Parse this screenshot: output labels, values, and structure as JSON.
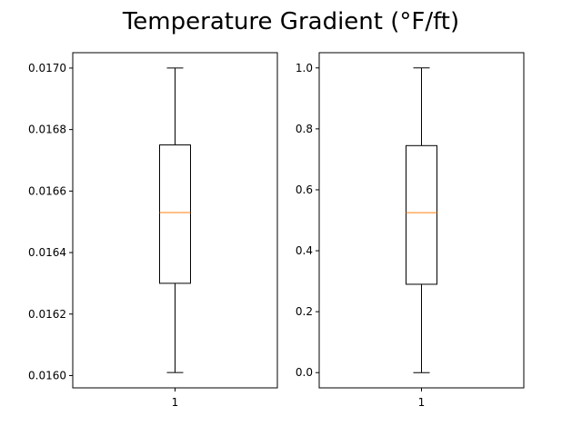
{
  "chart_data": {
    "title": "Temperature Gradient (°F/ft)",
    "box_color": "#000000",
    "median_color": "#ff7f0e",
    "panels": [
      {
        "type": "boxplot",
        "categories": [
          "1"
        ],
        "ylim": [
          0.01596,
          0.01705
        ],
        "yticks": [
          0.016,
          0.0162,
          0.0164,
          0.0166,
          0.0168,
          0.017
        ],
        "ytick_labels": [
          "0.0160",
          "0.0162",
          "0.0164",
          "0.0166",
          "0.0168",
          "0.0170"
        ],
        "box": {
          "whisker_low": 0.01601,
          "q1": 0.0163,
          "median": 0.01653,
          "q3": 0.01675,
          "whisker_high": 0.017
        }
      },
      {
        "type": "boxplot",
        "categories": [
          "1"
        ],
        "ylim": [
          -0.05,
          1.05
        ],
        "yticks": [
          0.0,
          0.2,
          0.4,
          0.6,
          0.8,
          1.0
        ],
        "ytick_labels": [
          "0.0",
          "0.2",
          "0.4",
          "0.6",
          "0.8",
          "1.0"
        ],
        "box": {
          "whisker_low": 0.0,
          "q1": 0.29,
          "median": 0.525,
          "q3": 0.745,
          "whisker_high": 1.0
        }
      }
    ]
  }
}
